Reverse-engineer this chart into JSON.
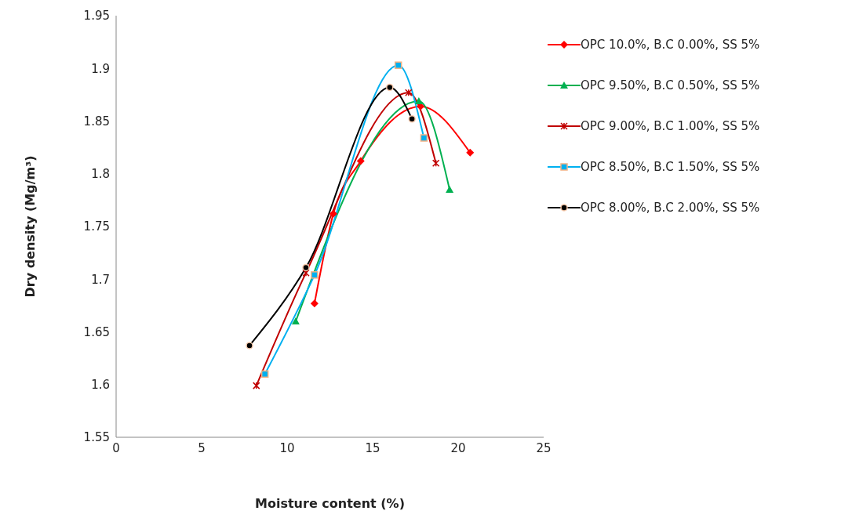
{
  "chart_data": {
    "type": "line",
    "xlabel": "Moisture content (%)",
    "ylabel": "Dry  density (Mg/m³)",
    "xlim": [
      0,
      25
    ],
    "xticks": [
      0,
      5,
      10,
      15,
      20,
      25
    ],
    "ylim": [
      1.55,
      1.95
    ],
    "yticks": [
      1.55,
      1.6,
      1.65,
      1.7,
      1.75,
      1.8,
      1.85,
      1.9,
      1.95
    ],
    "grid": false,
    "legend": "right",
    "line_style": "solid",
    "series": [
      {
        "name": "OPC 10.0%, B.C 0.00%, SS 5%",
        "color": "#ff0000",
        "marker": "diamond",
        "x": [
          11.6,
          12.7,
          14.3,
          17.8,
          20.7
        ],
        "values": [
          1.677,
          1.762,
          1.812,
          1.864,
          1.82
        ]
      },
      {
        "name": "OPC 9.50%, B.C 0.50%, SS 5%",
        "color": "#00b050",
        "marker": "triangle",
        "x": [
          10.5,
          17.7,
          19.5
        ],
        "values": [
          1.66,
          1.869,
          1.785
        ]
      },
      {
        "name": "OPC 9.00%, B.C 1.00%, SS 5%",
        "color": "#c00000",
        "marker": "cross",
        "x": [
          8.2,
          11.1,
          17.1,
          18.7
        ],
        "values": [
          1.599,
          1.706,
          1.877,
          1.81
        ]
      },
      {
        "name": "OPC 8.50%, B.C 1.50%, SS 5%",
        "color": "#00b0f0",
        "marker": "square",
        "x": [
          8.7,
          11.6,
          16.5,
          18.0
        ],
        "values": [
          1.61,
          1.704,
          1.903,
          1.834
        ]
      },
      {
        "name": "OPC 8.00%, B.C 2.00%, SS 5%",
        "color": "#000000",
        "marker": "circle",
        "x": [
          7.8,
          11.1,
          16.0,
          17.3
        ],
        "values": [
          1.637,
          1.711,
          1.882,
          1.852
        ]
      }
    ]
  }
}
